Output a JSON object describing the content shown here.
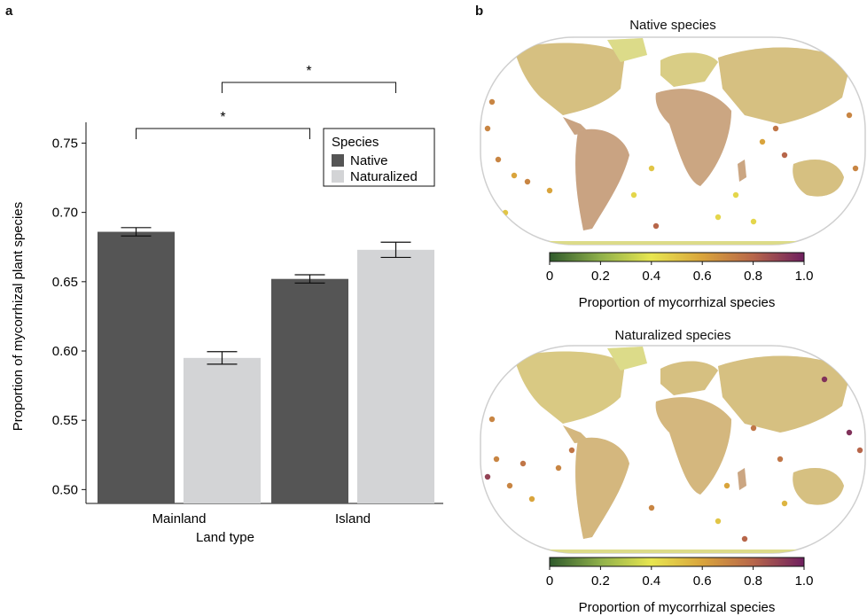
{
  "panels": {
    "a": "a",
    "b": "b"
  },
  "chart_data": [
    {
      "type": "bar",
      "panel": "a",
      "categories": [
        "Mainland",
        "Island"
      ],
      "series": [
        {
          "name": "Native",
          "values": [
            0.686,
            0.652
          ],
          "errors": [
            0.003,
            0.003
          ],
          "color": "#555555"
        },
        {
          "name": "Naturalized",
          "values": [
            0.595,
            0.673
          ],
          "errors": [
            0.0045,
            0.0055
          ],
          "color": "#d3d4d6"
        }
      ],
      "xlabel": "Land type",
      "ylabel": "Proportion of mycorrhizal plant species",
      "ylim": [
        0.49,
        0.765
      ],
      "yticks": [
        "0.50",
        "0.55",
        "0.60",
        "0.65",
        "0.70",
        "0.75"
      ],
      "legend": {
        "title": "Species",
        "placement": "top-right"
      },
      "annotations": [
        "*",
        "*"
      ],
      "grid": false
    },
    {
      "type": "map",
      "panel": "b",
      "title": "Native species",
      "colorbar_label": "Proportion of mycorrhizal species",
      "colorbar_ticks": [
        "0",
        "0.2",
        "0.4",
        "0.6",
        "0.8",
        "1.0"
      ],
      "colorbar_range": [
        0,
        1
      ],
      "colorscale": [
        "#2f5a2c",
        "#8fb04a",
        "#e8e650",
        "#d9a43c",
        "#b7664a",
        "#6e1f5f"
      ]
    },
    {
      "type": "map",
      "panel": "b",
      "title": "Naturalized species",
      "colorbar_label": "Proportion of mycorrhizal species",
      "colorbar_ticks": [
        "0",
        "0.2",
        "0.4",
        "0.6",
        "0.8",
        "1.0"
      ],
      "colorbar_range": [
        0,
        1
      ],
      "colorscale": [
        "#2f5a2c",
        "#8fb04a",
        "#e8e650",
        "#d9a43c",
        "#b7664a",
        "#6e1f5f"
      ]
    }
  ]
}
